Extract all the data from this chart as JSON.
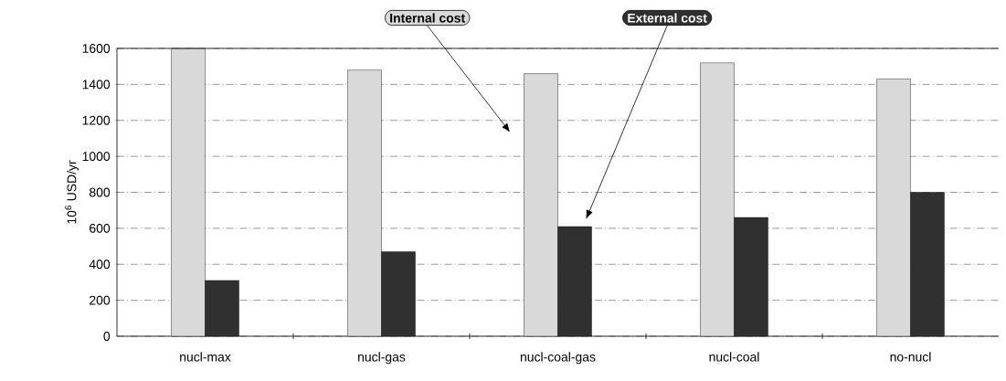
{
  "chart_data": {
    "type": "bar",
    "ylabel": "10$^{6}$ USD/yr",
    "categories": [
      "nucl-max",
      "nucl-gas",
      "nucl-coal-gas",
      "nucl-coal",
      "no-nucl"
    ],
    "series": [
      {
        "name": "Internal cost",
        "color": "#d9d9d9",
        "values": [
          1600,
          1480,
          1460,
          1520,
          1430
        ]
      },
      {
        "name": "External cost",
        "color": "#303030",
        "values": [
          310,
          470,
          610,
          660,
          800
        ]
      }
    ],
    "ylim": [
      0,
      1600
    ],
    "yticks": [
      0,
      200,
      400,
      600,
      800,
      1000,
      1200,
      1400,
      1600
    ],
    "grid": "y",
    "legend": "top"
  }
}
